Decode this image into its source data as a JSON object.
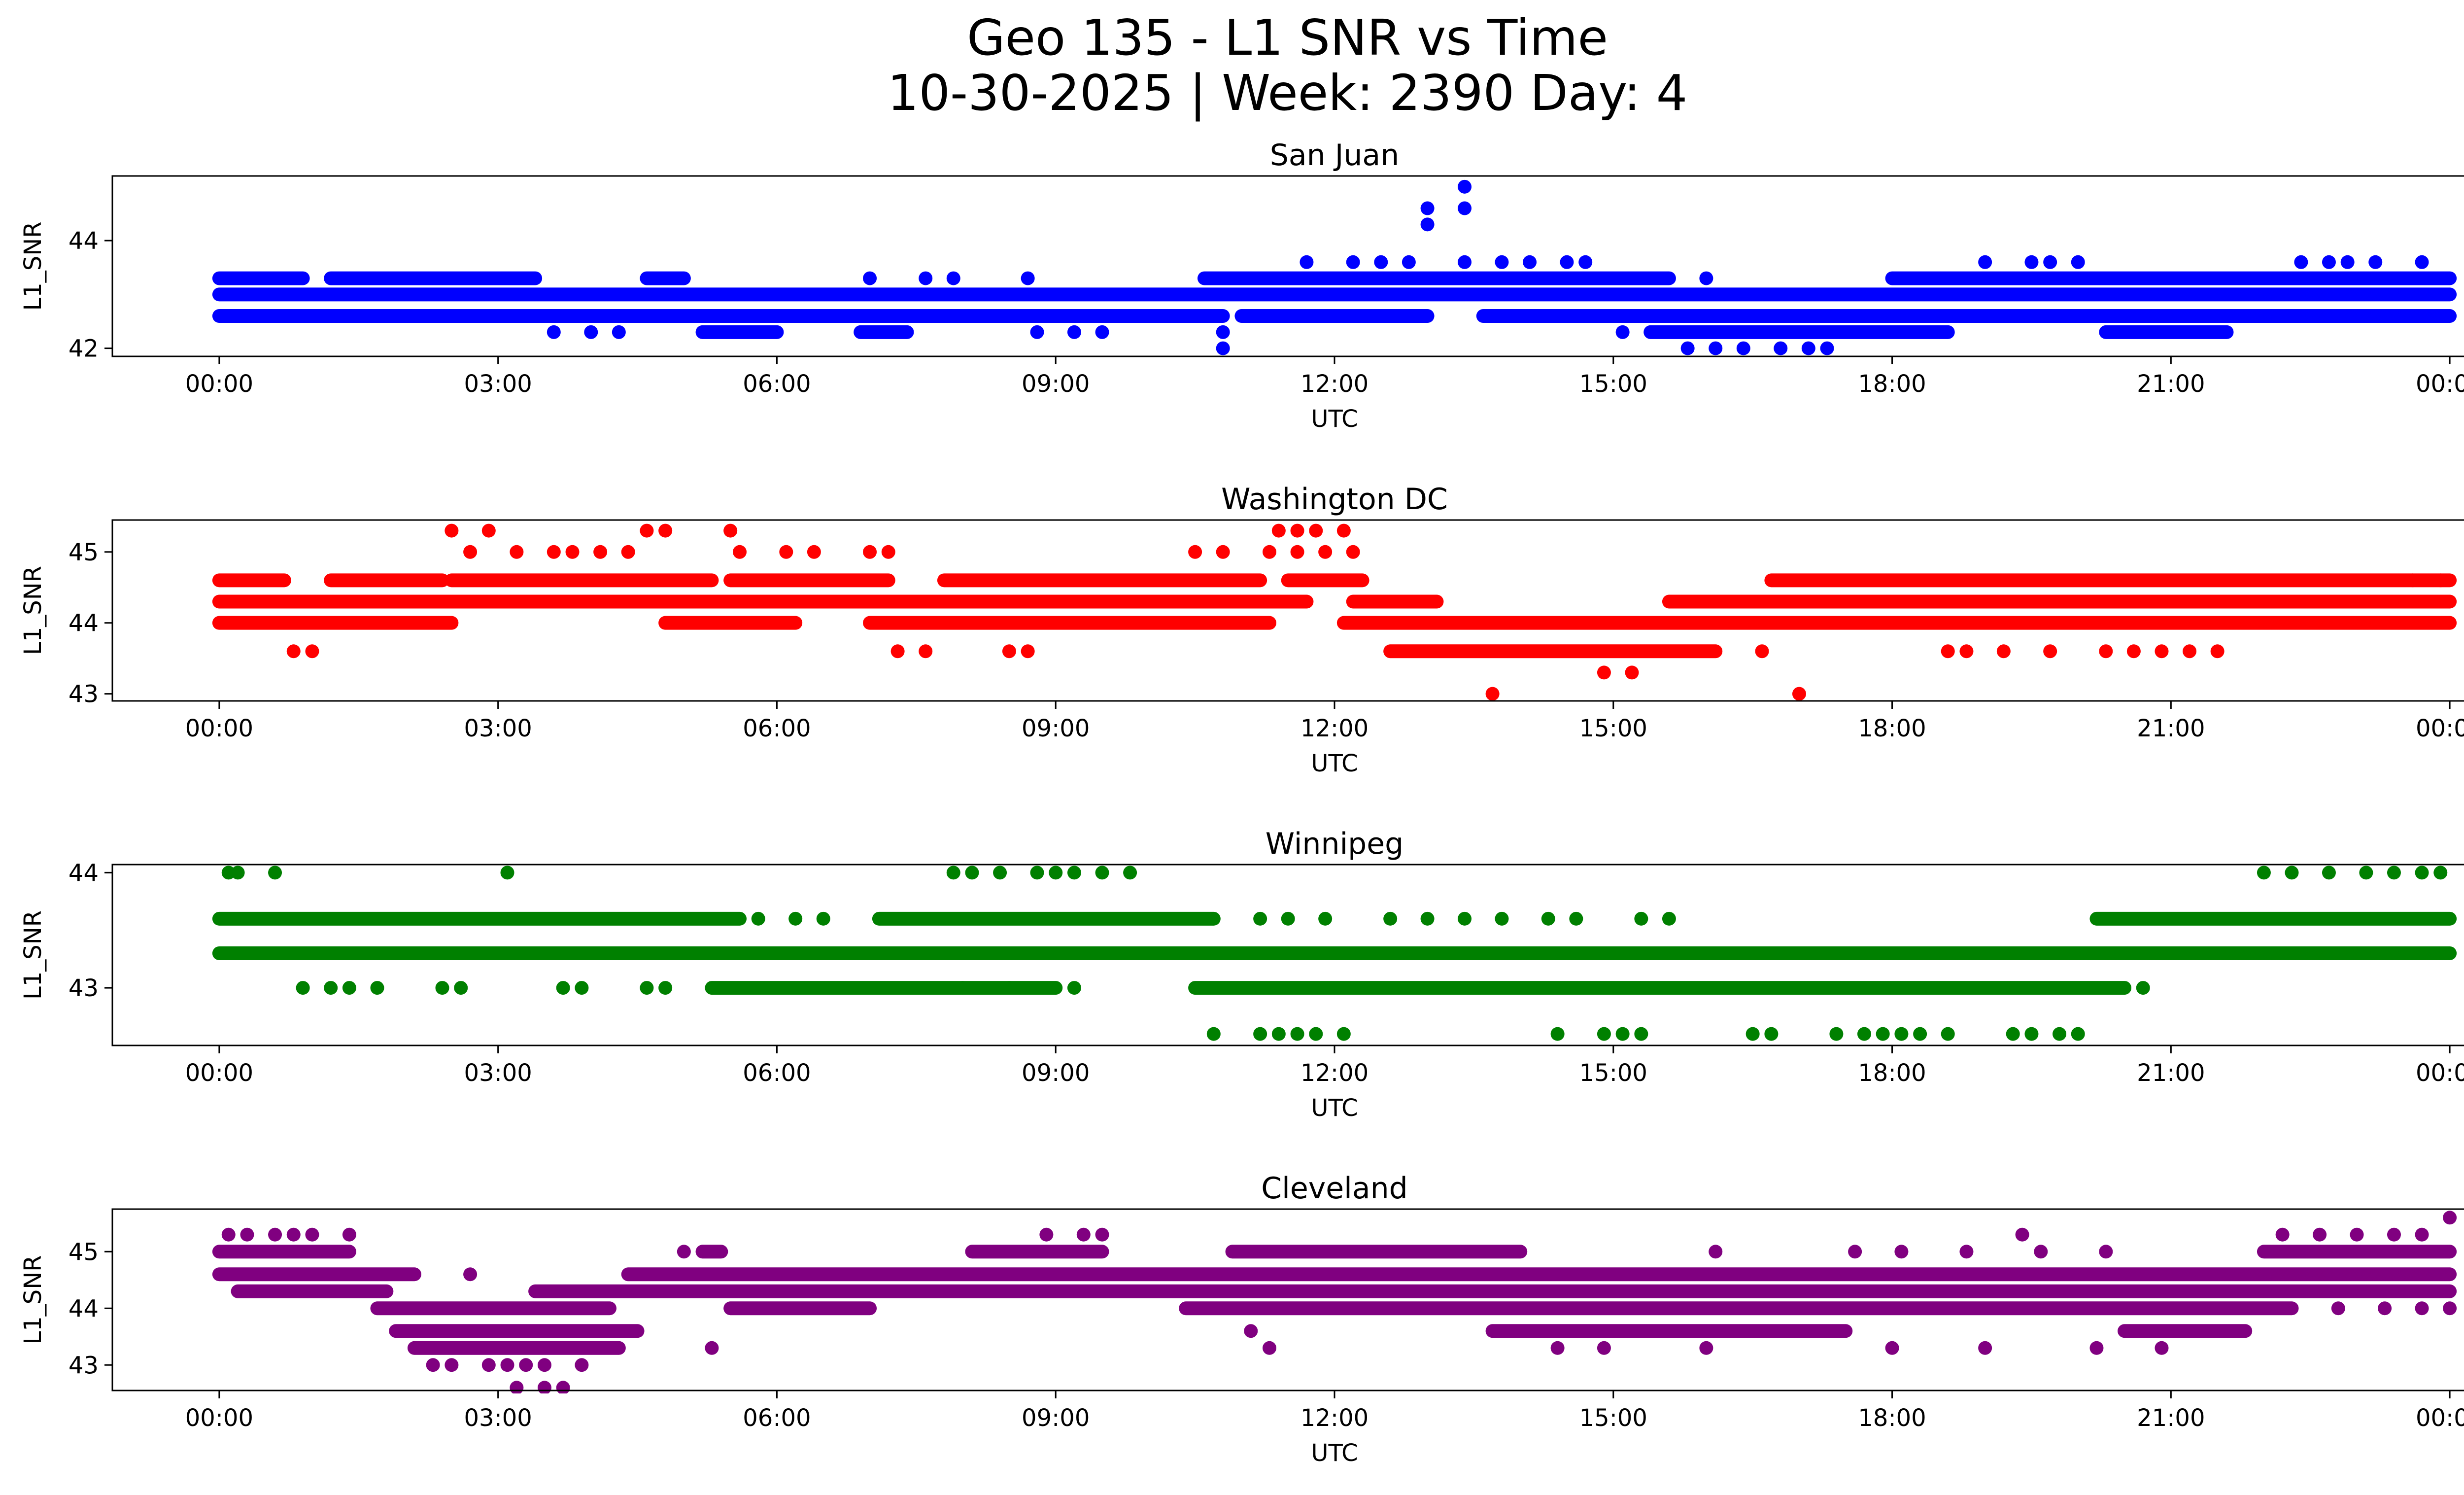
{
  "figure": {
    "title_line1": "Geo 135 - L1 SNR vs Time",
    "title_line2": "10-30-2025 | Week: 2390 Day: 4"
  },
  "chart_data": [
    {
      "type": "scatter",
      "title": "San Juan",
      "xlabel": "UTC",
      "ylabel": "L1_SNR",
      "color": "#0000ff",
      "x_ticks": [
        "00:00",
        "03:00",
        "06:00",
        "09:00",
        "12:00",
        "15:00",
        "18:00",
        "21:00",
        "00:00"
      ],
      "x_range_hours": [
        -1.15,
        25.15
      ],
      "y_ticks": [
        42,
        44
      ],
      "ylim": [
        41.85,
        45.2
      ],
      "levels": [
        {
          "y": 43.3,
          "segments": [
            [
              0,
              0.9
            ],
            [
              1.2,
              3.4
            ],
            [
              4.6,
              5.0
            ],
            [
              10.6,
              15.6
            ],
            [
              18.0,
              24.0
            ]
          ]
        },
        {
          "y": 43.0,
          "segments": [
            [
              0,
              24.0
            ]
          ]
        },
        {
          "y": 42.6,
          "segments": [
            [
              0,
              10.8
            ],
            [
              11.0,
              13.0
            ],
            [
              13.6,
              24.0
            ]
          ]
        },
        {
          "y": 42.3,
          "segments": [
            [
              5.2,
              6.0
            ],
            [
              6.9,
              7.4
            ],
            [
              15.4,
              18.6
            ],
            [
              20.3,
              21.6
            ]
          ]
        }
      ],
      "points": [
        [
          3.6,
          42.3
        ],
        [
          4.0,
          42.3
        ],
        [
          4.3,
          42.3
        ],
        [
          7.0,
          43.3
        ],
        [
          7.6,
          43.3
        ],
        [
          7.9,
          43.3
        ],
        [
          8.7,
          43.3
        ],
        [
          8.8,
          42.3
        ],
        [
          9.2,
          42.3
        ],
        [
          9.5,
          42.3
        ],
        [
          10.8,
          42.0
        ],
        [
          10.8,
          42.3
        ],
        [
          11.7,
          43.6
        ],
        [
          12.2,
          43.6
        ],
        [
          12.5,
          43.6
        ],
        [
          12.8,
          43.6
        ],
        [
          13.0,
          44.3
        ],
        [
          13.0,
          44.6
        ],
        [
          13.4,
          44.6
        ],
        [
          13.4,
          45.0
        ],
        [
          13.4,
          43.6
        ],
        [
          13.8,
          43.6
        ],
        [
          14.1,
          43.6
        ],
        [
          14.5,
          43.6
        ],
        [
          14.7,
          43.6
        ],
        [
          15.1,
          42.3
        ],
        [
          16.0,
          43.3
        ],
        [
          15.8,
          42.0
        ],
        [
          16.1,
          42.0
        ],
        [
          16.4,
          42.0
        ],
        [
          16.8,
          42.0
        ],
        [
          17.1,
          42.0
        ],
        [
          17.3,
          42.0
        ],
        [
          19.0,
          43.6
        ],
        [
          19.5,
          43.6
        ],
        [
          19.7,
          43.6
        ],
        [
          20.0,
          43.6
        ],
        [
          22.4,
          43.6
        ],
        [
          22.7,
          43.6
        ],
        [
          22.9,
          43.6
        ],
        [
          23.2,
          43.6
        ],
        [
          23.7,
          43.6
        ],
        [
          23.0,
          42.6
        ],
        [
          23.3,
          42.6
        ]
      ]
    },
    {
      "type": "scatter",
      "title": "Washington DC",
      "xlabel": "UTC",
      "ylabel": "L1_SNR",
      "color": "#ff0000",
      "x_ticks": [
        "00:00",
        "03:00",
        "06:00",
        "09:00",
        "12:00",
        "15:00",
        "18:00",
        "21:00",
        "00:00"
      ],
      "x_range_hours": [
        -1.15,
        25.15
      ],
      "y_ticks": [
        43,
        44,
        45
      ],
      "ylim": [
        42.9,
        45.45
      ],
      "levels": [
        {
          "y": 44.6,
          "segments": [
            [
              0,
              0.7
            ],
            [
              1.2,
              2.4
            ],
            [
              2.5,
              5.3
            ],
            [
              5.5,
              7.2
            ],
            [
              7.8,
              11.2
            ],
            [
              11.5,
              12.3
            ],
            [
              16.7,
              24.0
            ]
          ]
        },
        {
          "y": 44.3,
          "segments": [
            [
              0,
              11.7
            ],
            [
              12.2,
              13.1
            ],
            [
              15.6,
              24.0
            ]
          ]
        },
        {
          "y": 44.0,
          "segments": [
            [
              0,
              2.5
            ],
            [
              4.8,
              6.2
            ],
            [
              7.0,
              11.3
            ],
            [
              12.1,
              24.0
            ]
          ]
        },
        {
          "y": 43.6,
          "segments": [
            [
              12.6,
              16.1
            ]
          ]
        }
      ],
      "points": [
        [
          0.8,
          43.6
        ],
        [
          1.0,
          43.6
        ],
        [
          2.5,
          45.3
        ],
        [
          2.7,
          45.0
        ],
        [
          2.9,
          45.3
        ],
        [
          3.2,
          45.0
        ],
        [
          3.6,
          45.0
        ],
        [
          3.8,
          45.0
        ],
        [
          4.1,
          45.0
        ],
        [
          4.4,
          45.0
        ],
        [
          4.6,
          45.3
        ],
        [
          4.8,
          45.3
        ],
        [
          5.5,
          45.3
        ],
        [
          5.6,
          45.0
        ],
        [
          6.1,
          45.0
        ],
        [
          6.4,
          45.0
        ],
        [
          7.0,
          45.0
        ],
        [
          7.2,
          45.0
        ],
        [
          7.3,
          43.6
        ],
        [
          7.6,
          43.6
        ],
        [
          8.5,
          43.6
        ],
        [
          8.7,
          43.6
        ],
        [
          10.5,
          45.0
        ],
        [
          10.8,
          45.0
        ],
        [
          11.3,
          45.0
        ],
        [
          11.4,
          45.3
        ],
        [
          11.6,
          45.3
        ],
        [
          11.8,
          45.3
        ],
        [
          11.6,
          45.0
        ],
        [
          11.9,
          45.0
        ],
        [
          12.1,
          45.3
        ],
        [
          12.2,
          45.0
        ],
        [
          13.7,
          43.0
        ],
        [
          14.9,
          43.3
        ],
        [
          15.2,
          43.3
        ],
        [
          16.6,
          43.6
        ],
        [
          17.0,
          43.0
        ],
        [
          18.6,
          43.6
        ],
        [
          18.8,
          43.6
        ],
        [
          19.2,
          43.6
        ],
        [
          19.7,
          43.6
        ],
        [
          20.3,
          43.6
        ],
        [
          20.6,
          43.6
        ],
        [
          20.9,
          43.6
        ],
        [
          21.2,
          43.6
        ],
        [
          21.5,
          43.6
        ],
        [
          23.6,
          44.6
        ],
        [
          23.9,
          44.6
        ]
      ]
    },
    {
      "type": "scatter",
      "title": "Winnipeg",
      "xlabel": "UTC",
      "ylabel": "L1_SNR",
      "color": "#008000",
      "x_ticks": [
        "00:00",
        "03:00",
        "06:00",
        "09:00",
        "12:00",
        "15:00",
        "18:00",
        "21:00",
        "00:00"
      ],
      "x_range_hours": [
        -1.15,
        25.15
      ],
      "y_ticks": [
        43,
        44
      ],
      "ylim": [
        42.5,
        44.07
      ],
      "levels": [
        {
          "y": 43.6,
          "segments": [
            [
              0,
              5.6
            ],
            [
              7.1,
              10.7
            ],
            [
              20.2,
              24.0
            ]
          ]
        },
        {
          "y": 43.3,
          "segments": [
            [
              0,
              24.0
            ]
          ]
        },
        {
          "y": 43.0,
          "segments": [
            [
              5.3,
              9.0
            ],
            [
              10.5,
              20.5
            ]
          ]
        }
      ],
      "points": [
        [
          0.1,
          44.0
        ],
        [
          0.2,
          44.0
        ],
        [
          0.6,
          44.0
        ],
        [
          3.1,
          44.0
        ],
        [
          7.9,
          44.0
        ],
        [
          8.1,
          44.0
        ],
        [
          8.4,
          44.0
        ],
        [
          8.8,
          44.0
        ],
        [
          9.0,
          44.0
        ],
        [
          9.2,
          44.0
        ],
        [
          9.5,
          44.0
        ],
        [
          9.8,
          44.0
        ],
        [
          22.0,
          44.0
        ],
        [
          22.3,
          44.0
        ],
        [
          22.7,
          44.0
        ],
        [
          23.1,
          44.0
        ],
        [
          23.4,
          44.0
        ],
        [
          23.7,
          44.0
        ],
        [
          23.9,
          44.0
        ],
        [
          5.8,
          43.6
        ],
        [
          6.2,
          43.6
        ],
        [
          6.5,
          43.6
        ],
        [
          11.2,
          43.6
        ],
        [
          11.5,
          43.6
        ],
        [
          11.9,
          43.6
        ],
        [
          12.6,
          43.6
        ],
        [
          13.0,
          43.6
        ],
        [
          13.4,
          43.6
        ],
        [
          13.8,
          43.6
        ],
        [
          14.3,
          43.6
        ],
        [
          14.6,
          43.6
        ],
        [
          15.3,
          43.6
        ],
        [
          15.6,
          43.6
        ],
        [
          0.9,
          43.0
        ],
        [
          1.2,
          43.0
        ],
        [
          1.4,
          43.0
        ],
        [
          1.7,
          43.0
        ],
        [
          2.4,
          43.0
        ],
        [
          2.6,
          43.0
        ],
        [
          3.7,
          43.0
        ],
        [
          3.9,
          43.0
        ],
        [
          4.6,
          43.0
        ],
        [
          4.8,
          43.0
        ],
        [
          8.0,
          43.0
        ],
        [
          8.5,
          43.0
        ],
        [
          9.2,
          43.0
        ],
        [
          20.7,
          43.0
        ],
        [
          10.7,
          42.6
        ],
        [
          11.2,
          42.6
        ],
        [
          11.4,
          42.6
        ],
        [
          11.6,
          42.6
        ],
        [
          11.8,
          42.6
        ],
        [
          12.1,
          42.6
        ],
        [
          14.4,
          42.6
        ],
        [
          14.9,
          42.6
        ],
        [
          15.1,
          42.6
        ],
        [
          15.3,
          42.6
        ],
        [
          16.5,
          42.6
        ],
        [
          16.7,
          42.6
        ],
        [
          17.4,
          42.6
        ],
        [
          17.7,
          42.6
        ],
        [
          17.9,
          42.6
        ],
        [
          18.1,
          42.6
        ],
        [
          18.3,
          42.6
        ],
        [
          18.6,
          42.6
        ],
        [
          19.3,
          42.6
        ],
        [
          19.5,
          42.6
        ],
        [
          19.8,
          42.6
        ],
        [
          20.0,
          42.6
        ]
      ]
    },
    {
      "type": "scatter",
      "title": "Cleveland",
      "xlabel": "UTC",
      "ylabel": "L1_SNR",
      "color": "#800080",
      "x_ticks": [
        "00:00",
        "03:00",
        "06:00",
        "09:00",
        "12:00",
        "15:00",
        "18:00",
        "21:00",
        "00:00"
      ],
      "x_range_hours": [
        -1.15,
        25.15
      ],
      "y_ticks": [
        43,
        44,
        45
      ],
      "ylim": [
        42.55,
        45.75
      ],
      "levels": [
        {
          "y": 45.0,
          "segments": [
            [
              0,
              1.4
            ],
            [
              5.2,
              5.4
            ],
            [
              8.1,
              9.5
            ],
            [
              10.9,
              14.0
            ],
            [
              22.0,
              24.0
            ]
          ]
        },
        {
          "y": 44.6,
          "segments": [
            [
              0,
              2.1
            ],
            [
              4.4,
              24.0
            ]
          ]
        },
        {
          "y": 44.3,
          "segments": [
            [
              0.2,
              1.8
            ],
            [
              3.4,
              24.0
            ]
          ]
        },
        {
          "y": 44.0,
          "segments": [
            [
              1.7,
              4.2
            ],
            [
              5.5,
              7.0
            ],
            [
              10.4,
              22.3
            ]
          ]
        },
        {
          "y": 43.6,
          "segments": [
            [
              1.9,
              4.5
            ],
            [
              13.7,
              17.5
            ],
            [
              20.5,
              21.8
            ]
          ]
        },
        {
          "y": 43.3,
          "segments": [
            [
              2.1,
              4.3
            ]
          ]
        }
      ],
      "points": [
        [
          0.1,
          45.3
        ],
        [
          0.3,
          45.3
        ],
        [
          0.6,
          45.3
        ],
        [
          0.8,
          45.3
        ],
        [
          1.0,
          45.3
        ],
        [
          1.4,
          45.3
        ],
        [
          2.7,
          44.6
        ],
        [
          2.3,
          43.0
        ],
        [
          2.5,
          43.0
        ],
        [
          2.9,
          43.0
        ],
        [
          3.1,
          43.0
        ],
        [
          3.3,
          43.0
        ],
        [
          3.5,
          43.0
        ],
        [
          3.9,
          43.0
        ],
        [
          3.2,
          42.6
        ],
        [
          3.5,
          42.6
        ],
        [
          3.7,
          42.6
        ],
        [
          5.0,
          45.0
        ],
        [
          8.9,
          45.3
        ],
        [
          9.3,
          45.3
        ],
        [
          9.5,
          45.3
        ],
        [
          5.3,
          43.3
        ],
        [
          11.3,
          43.3
        ],
        [
          11.1,
          43.6
        ],
        [
          14.4,
          43.3
        ],
        [
          14.9,
          43.3
        ],
        [
          16.0,
          43.3
        ],
        [
          18.0,
          43.3
        ],
        [
          19.0,
          43.3
        ],
        [
          20.2,
          43.3
        ],
        [
          20.9,
          43.3
        ],
        [
          16.1,
          45.0
        ],
        [
          17.6,
          45.0
        ],
        [
          18.1,
          45.0
        ],
        [
          18.8,
          45.0
        ],
        [
          19.6,
          45.0
        ],
        [
          20.3,
          45.0
        ],
        [
          19.4,
          45.3
        ],
        [
          22.2,
          45.3
        ],
        [
          22.6,
          45.3
        ],
        [
          23.0,
          45.3
        ],
        [
          23.4,
          45.3
        ],
        [
          23.7,
          45.3
        ],
        [
          24.0,
          45.6
        ],
        [
          22.8,
          44.0
        ],
        [
          23.3,
          44.0
        ],
        [
          23.7,
          44.0
        ],
        [
          24.0,
          44.0
        ]
      ]
    }
  ]
}
